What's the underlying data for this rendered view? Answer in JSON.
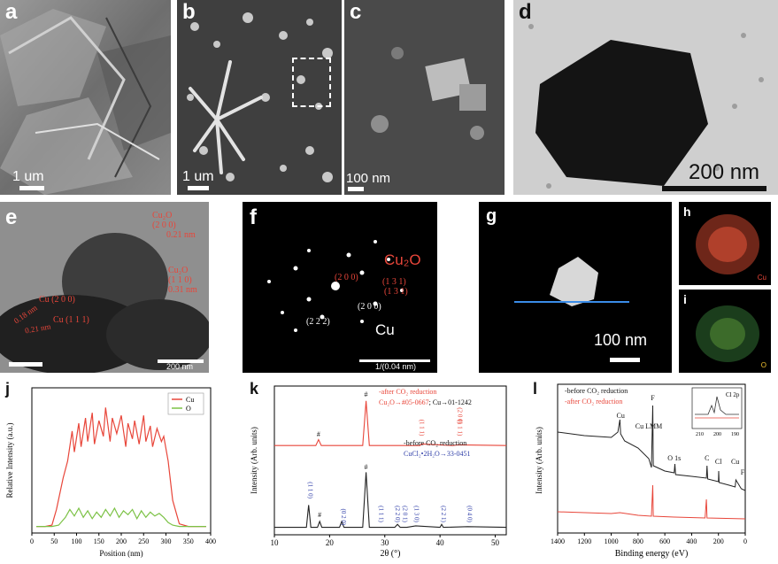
{
  "panels": {
    "a": {
      "label": "a",
      "scale": "1 um"
    },
    "b": {
      "label": "b",
      "scale": "1 um"
    },
    "c": {
      "label": "c",
      "scale": "100 nm"
    },
    "d": {
      "label": "d",
      "scale": "200 nm"
    },
    "e": {
      "label": "e",
      "scale": "200 nm",
      "annotations": [
        "Cu₂O",
        "(2 0 0)",
        "0.21 nm",
        "Cu₂O",
        "(1 1 0)",
        "0.31 nm",
        "Cu (2 0 0)",
        "0.18 nm",
        "Cu (1 1 1)",
        "0.21 nm"
      ]
    },
    "f": {
      "label": "f",
      "scale": "1/(0.04 nm)",
      "phase1": "Cu₂O",
      "phase2": "Cu",
      "spots": [
        "(2 0 0)",
        "(1 3 1)",
        "(1 3 1)",
        "(2 0 0)",
        "(2 2 2)"
      ]
    },
    "g": {
      "label": "g",
      "scale": "100 nm"
    },
    "h": {
      "label": "h",
      "element": "Cu"
    },
    "i": {
      "label": "i",
      "element": "O"
    }
  },
  "chart_data": [
    {
      "id": "j",
      "type": "line",
      "title": "",
      "xlabel": "Position (nm)",
      "ylabel": "Relative Intensity (a.u.)",
      "xlim": [
        0,
        400
      ],
      "xticks": [
        0,
        50,
        100,
        150,
        200,
        250,
        300,
        350,
        400
      ],
      "legend": "top-right",
      "series": [
        {
          "name": "Cu",
          "color": "#e8463a",
          "x": [
            10,
            30,
            45,
            55,
            70,
            80,
            90,
            95,
            105,
            110,
            120,
            125,
            135,
            140,
            150,
            160,
            165,
            175,
            180,
            190,
            200,
            210,
            215,
            225,
            230,
            240,
            250,
            255,
            265,
            270,
            280,
            290,
            295,
            305,
            315,
            330,
            350,
            370,
            390
          ],
          "y": [
            0.05,
            0.05,
            0.06,
            0.18,
            0.42,
            0.55,
            0.78,
            0.62,
            0.84,
            0.66,
            0.88,
            0.7,
            0.92,
            0.68,
            0.86,
            0.74,
            0.96,
            0.7,
            0.88,
            0.76,
            0.9,
            0.66,
            0.84,
            0.72,
            0.86,
            0.68,
            0.9,
            0.7,
            0.82,
            0.66,
            0.8,
            0.7,
            0.74,
            0.55,
            0.25,
            0.07,
            0.05,
            0.05,
            0.05
          ]
        },
        {
          "name": "O",
          "color": "#7cc246",
          "x": [
            10,
            30,
            45,
            60,
            75,
            85,
            95,
            105,
            115,
            125,
            135,
            145,
            155,
            165,
            175,
            185,
            195,
            205,
            215,
            225,
            235,
            245,
            255,
            265,
            275,
            285,
            295,
            305,
            315,
            330,
            350,
            370,
            390
          ],
          "y": [
            0.05,
            0.05,
            0.05,
            0.06,
            0.12,
            0.18,
            0.13,
            0.19,
            0.12,
            0.17,
            0.11,
            0.16,
            0.12,
            0.18,
            0.13,
            0.19,
            0.12,
            0.17,
            0.14,
            0.18,
            0.11,
            0.17,
            0.12,
            0.16,
            0.13,
            0.15,
            0.12,
            0.08,
            0.06,
            0.05,
            0.05,
            0.05,
            0.05
          ]
        }
      ]
    },
    {
      "id": "k",
      "type": "line",
      "title": "",
      "xlabel": "2θ (°)",
      "ylabel": "Intensity (Arb. units)",
      "xlim": [
        10,
        52
      ],
      "xticks": [
        10,
        20,
        30,
        40,
        50
      ],
      "series": [
        {
          "name": "after CO₂ reduction",
          "color": "#e8463a",
          "x": [
            10,
            17.5,
            18,
            18.5,
            26,
            26.6,
            27.2,
            36.4,
            36.6,
            42.3,
            43.3,
            52
          ],
          "y": [
            0.6,
            0.6,
            0.64,
            0.6,
            0.6,
            0.9,
            0.6,
            0.6,
            0.61,
            0.6,
            0.605,
            0.6
          ],
          "legend": [
            "-after CO₂ reduction",
            "Cu₂O→",
            "#05-0667",
            "; ",
            "Cu→",
            "01-1242"
          ],
          "peaks": [
            "#",
            "#",
            "(1 1 1)",
            "(1 1 1)",
            "(2 0 0)"
          ]
        },
        {
          "name": "before CO₂ reduction",
          "color": "#222222",
          "x": [
            10,
            15.8,
            16.2,
            16.6,
            17.8,
            18.2,
            18.6,
            21.8,
            22.2,
            22.6,
            26,
            26.6,
            27.2,
            31.8,
            32.3,
            32.8,
            34,
            35.6,
            40,
            40.3,
            40.6,
            45,
            52
          ],
          "y": [
            0.05,
            0.05,
            0.2,
            0.05,
            0.05,
            0.09,
            0.05,
            0.05,
            0.09,
            0.05,
            0.05,
            0.42,
            0.05,
            0.05,
            0.07,
            0.05,
            0.05,
            0.06,
            0.05,
            0.07,
            0.05,
            0.055,
            0.05
          ],
          "legend": [
            "-before CO₂ reduction",
            "CuCl₂•2H₂O→",
            "33-0451"
          ],
          "peaks": [
            "(1 1 0)",
            "#",
            "(0 2 0)",
            "#",
            "(1 1 1)",
            "(2 2 0)",
            "(2 0 1)",
            "(1 3 0)",
            "(2 2 1)",
            "(0 4 0)"
          ]
        }
      ]
    },
    {
      "id": "l",
      "type": "line",
      "title": "",
      "xlabel": "Binding energy (eV)",
      "ylabel": "Intensity (Arb. units)",
      "xlim": [
        1400,
        0
      ],
      "xticks": [
        1400,
        1200,
        1000,
        800,
        600,
        400,
        200,
        0
      ],
      "annotations": [
        "Cu",
        "F",
        "Cu LMM",
        "O 1s",
        "C",
        "Cl",
        "Cu",
        "F"
      ],
      "series": [
        {
          "name": "before CO₂ reduction",
          "color": "#222222",
          "label": "-before CO₂ reduction"
        },
        {
          "name": "after CO₂ reduction",
          "color": "#e8463a",
          "label": "-after CO₂ reduction"
        }
      ],
      "inset": {
        "label": "Cl 2p",
        "xticks": [
          210,
          200,
          190
        ]
      }
    }
  ]
}
